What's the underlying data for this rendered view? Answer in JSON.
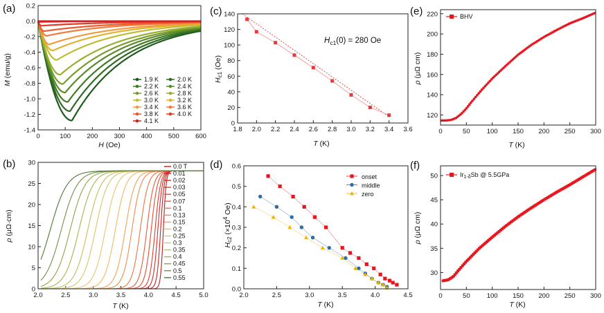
{
  "figure": {
    "panels": [
      "(a)",
      "(b)",
      "(c)",
      "(d)",
      "(e)",
      "(f)"
    ]
  },
  "chart_data": [
    {
      "id": "a",
      "type": "line",
      "panel_label": "(a)",
      "xlabel": "H (Oe)",
      "ylabel": "M (emu/g)",
      "xlim": [
        0,
        600
      ],
      "ylim": [
        -1.4,
        0.2
      ],
      "xticks": [
        "0",
        "100",
        "200",
        "300",
        "400",
        "500",
        "600"
      ],
      "yticks": [
        "0.2",
        "0.0",
        "-0.2",
        "-0.4",
        "-0.6",
        "-0.8",
        "-1.0",
        "-1.2",
        "-1.4"
      ],
      "series": [
        {
          "name": "1.9 K",
          "color": "#1e5a1c",
          "min_x": 125,
          "min_y": -1.28
        },
        {
          "name": "2.0 K",
          "color": "#2f6a22",
          "min_x": 118,
          "min_y": -1.16
        },
        {
          "name": "2.2 K",
          "color": "#3f7a24",
          "min_x": 110,
          "min_y": -1.04
        },
        {
          "name": "2.4 K",
          "color": "#598a28",
          "min_x": 100,
          "min_y": -0.92
        },
        {
          "name": "2.6 K",
          "color": "#789c2c",
          "min_x": 92,
          "min_y": -0.81
        },
        {
          "name": "2.8 K",
          "color": "#98ae2e",
          "min_x": 82,
          "min_y": -0.69
        },
        {
          "name": "3.0 K",
          "color": "#bdbd30",
          "min_x": 70,
          "min_y": -0.5
        },
        {
          "name": "3.2 K",
          "color": "#e2b230",
          "min_x": 55,
          "min_y": -0.38
        },
        {
          "name": "3.4 K",
          "color": "#f29a3c",
          "min_x": 42,
          "min_y": -0.3
        },
        {
          "name": "3.6 K",
          "color": "#f07a3a",
          "min_x": 32,
          "min_y": -0.19
        },
        {
          "name": "3.8 K",
          "color": "#ea5a2c",
          "min_x": 22,
          "min_y": -0.13
        },
        {
          "name": "4.0 K",
          "color": "#e23a24",
          "min_x": 12,
          "min_y": -0.06
        },
        {
          "name": "4.1 K",
          "color": "#d42020",
          "min_x": 6,
          "min_y": -0.01
        }
      ]
    },
    {
      "id": "b",
      "type": "line",
      "panel_label": "(b)",
      "xlabel": "T (K)",
      "ylabel": "ρ (μΩ·cm)",
      "xlim": [
        2.0,
        5.0
      ],
      "ylim": [
        0,
        30
      ],
      "xticks": [
        "2.0",
        "2.5",
        "3.0",
        "3.5",
        "4.0",
        "4.5",
        "5.0"
      ],
      "yticks": [
        "0",
        "5",
        "10",
        "15",
        "20",
        "25",
        "30"
      ],
      "normal_state_resistivity": 28,
      "series": [
        {
          "name": "0.0 T",
          "color": "#c01818",
          "tc": 4.27
        },
        {
          "name": "0.01",
          "color": "#cc2020",
          "tc": 4.22
        },
        {
          "name": "0.02",
          "color": "#d42a26",
          "tc": 4.17
        },
        {
          "name": "0.03",
          "color": "#dc3a2c",
          "tc": 4.12
        },
        {
          "name": "0.05",
          "color": "#e24a30",
          "tc": 4.05
        },
        {
          "name": "0.07",
          "color": "#e85c36",
          "tc": 3.97
        },
        {
          "name": "0.1",
          "color": "#ee7440",
          "tc": 3.85
        },
        {
          "name": "0.13",
          "color": "#f2884a",
          "tc": 3.7
        },
        {
          "name": "0.15",
          "color": "#f4a058",
          "tc": 3.58
        },
        {
          "name": "0.2",
          "color": "#f0b868",
          "tc": 3.4
        },
        {
          "name": "0.25",
          "color": "#e6c470",
          "tc": 3.22
        },
        {
          "name": "0.3",
          "color": "#d8c468",
          "tc": 3.04
        },
        {
          "name": "0.35",
          "color": "#c2be5c",
          "tc": 2.9
        },
        {
          "name": "0.4",
          "color": "#a8b250",
          "tc": 2.74
        },
        {
          "name": "0.45",
          "color": "#8ca446",
          "tc": 2.58
        },
        {
          "name": "0.5",
          "color": "#6e9040",
          "tc": 2.42
        },
        {
          "name": "0.55",
          "color": "#4a7836",
          "tc": 2.22
        }
      ]
    },
    {
      "id": "c",
      "type": "scatter",
      "panel_label": "(c)",
      "xlabel": "T (K)",
      "ylabel": "Hc1 (Oe)",
      "xlim": [
        1.8,
        3.6
      ],
      "ylim": [
        0,
        140
      ],
      "xticks": [
        "1.8",
        "2.0",
        "2.2",
        "2.4",
        "2.6",
        "2.8",
        "3.0",
        "3.2",
        "3.4",
        "3.6"
      ],
      "yticks": [
        "0",
        "20",
        "40",
        "60",
        "80",
        "100",
        "120",
        "140"
      ],
      "annotation": {
        "symbol": "H",
        "subscript": "c1",
        "text": "(0) = 280 Oe"
      },
      "x": [
        1.9,
        2.0,
        2.2,
        2.4,
        2.6,
        2.8,
        3.0,
        3.2,
        3.4
      ],
      "y": [
        133,
        117,
        103,
        87,
        71,
        54,
        36,
        20,
        10
      ],
      "fit": {
        "x": [
          1.85,
          3.4
        ],
        "y": [
          140,
          8
        ]
      },
      "color": "#e8383a"
    },
    {
      "id": "d",
      "type": "scatter",
      "panel_label": "(d)",
      "xlabel": "T (K)",
      "ylabel": "Hc2 (×10⁴ Oe)",
      "xlim": [
        2.0,
        4.5
      ],
      "ylim": [
        0,
        0.6
      ],
      "xticks": [
        "2.0",
        "2.5",
        "3.0",
        "3.5",
        "4.0",
        "4.5"
      ],
      "yticks": [
        "0.0",
        "0.1",
        "0.2",
        "0.3",
        "0.4",
        "0.5",
        "0.6"
      ],
      "series": [
        {
          "name": "onset",
          "color": "#e8141e",
          "marker": "square",
          "x": [
            2.37,
            2.55,
            2.75,
            2.92,
            3.08,
            3.25,
            3.5,
            3.62,
            3.75,
            3.87,
            3.98,
            4.08,
            4.15,
            4.22,
            4.27,
            4.33
          ],
          "y": [
            0.55,
            0.5,
            0.45,
            0.4,
            0.35,
            0.3,
            0.2,
            0.175,
            0.15,
            0.12,
            0.1,
            0.07,
            0.05,
            0.04,
            0.03,
            0.02
          ]
        },
        {
          "name": "middle",
          "color": "#2a6ea8",
          "marker": "circle",
          "x": [
            2.25,
            2.5,
            2.73,
            2.88,
            3.05,
            3.3,
            3.55,
            3.75,
            3.85,
            3.95,
            4.05,
            4.12,
            4.18
          ],
          "y": [
            0.45,
            0.4,
            0.35,
            0.3,
            0.25,
            0.2,
            0.15,
            0.1,
            0.075,
            0.05,
            0.03,
            0.02,
            0.01
          ]
        },
        {
          "name": "zero",
          "color": "#f0b400",
          "marker": "triangle",
          "x": [
            2.15,
            2.45,
            2.7,
            2.95,
            3.2,
            3.5,
            3.7,
            3.85,
            3.95,
            4.05,
            4.12,
            4.18
          ],
          "y": [
            0.4,
            0.35,
            0.3,
            0.25,
            0.2,
            0.15,
            0.1,
            0.07,
            0.05,
            0.03,
            0.02,
            0.005
          ]
        }
      ]
    },
    {
      "id": "e",
      "type": "line",
      "panel_label": "(e)",
      "xlabel": "T (K)",
      "ylabel": "ρ (μΩ cm)",
      "xlim": [
        0,
        300
      ],
      "ylim": [
        110,
        224
      ],
      "xticks": [
        "0",
        "50",
        "100",
        "150",
        "200",
        "250",
        "300"
      ],
      "yticks": [
        "120",
        "140",
        "160",
        "180",
        "200",
        "220"
      ],
      "legend": "BHV",
      "color": "#e8141e",
      "x": [
        2,
        10,
        20,
        25,
        30,
        40,
        50,
        60,
        80,
        100,
        125,
        150,
        175,
        200,
        225,
        250,
        275,
        300
      ],
      "y": [
        114.5,
        114.5,
        115,
        116,
        117,
        121,
        126.5,
        133,
        145,
        156,
        168,
        179.5,
        189,
        197,
        204,
        210.5,
        215.5,
        221
      ]
    },
    {
      "id": "f",
      "type": "line",
      "panel_label": "(f)",
      "xlabel": "T (K)",
      "ylabel": "ρ (μΩ cm)",
      "xlim": [
        0,
        300
      ],
      "ylim": [
        26.5,
        52
      ],
      "xticks": [
        "0",
        "50",
        "100",
        "150",
        "200",
        "250",
        "300"
      ],
      "yticks": [
        "30",
        "35",
        "40",
        "45",
        "50"
      ],
      "legend": "Ir1-δSb @ 5.5GPa",
      "legend_parts": {
        "base": "Ir",
        "sub": "1-δ",
        "tail": "Sb @ 5.5GPa"
      },
      "color": "#e8141e",
      "x": [
        5,
        15,
        25,
        35,
        50,
        75,
        100,
        125,
        150,
        175,
        200,
        225,
        250,
        275,
        300
      ],
      "y": [
        28.3,
        28.5,
        29.2,
        30.5,
        32.3,
        35,
        37.3,
        39.5,
        41.5,
        43.3,
        45,
        46.6,
        48.1,
        49.7,
        51.3
      ]
    }
  ]
}
